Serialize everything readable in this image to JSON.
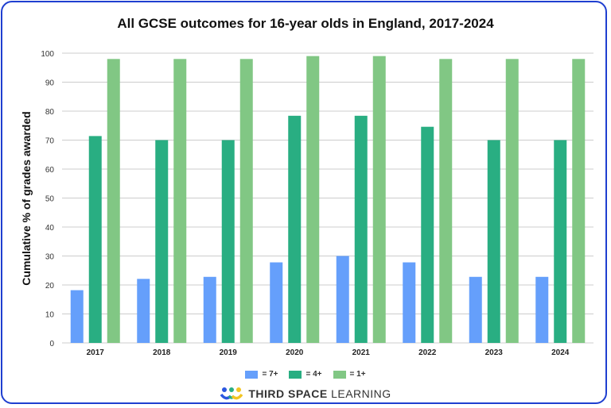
{
  "chart_data": {
    "type": "bar",
    "title": "All GCSE outcomes for 16-year olds in England, 2017-2024",
    "xlabel": "",
    "ylabel": "Cumulative % of grades awarded",
    "ylim": [
      0,
      100
    ],
    "yticks": [
      0,
      10,
      20,
      30,
      40,
      50,
      60,
      70,
      80,
      90,
      100
    ],
    "grid": true,
    "legend": "bottom",
    "categories": [
      "2017",
      "2018",
      "2019",
      "2020",
      "2021",
      "2022",
      "2023",
      "2024"
    ],
    "series": [
      {
        "name": "= 7+",
        "color": "#659ffb",
        "values": [
          18.2,
          22.1,
          22.8,
          27.8,
          30.0,
          27.8,
          22.8,
          22.8
        ]
      },
      {
        "name": "= 4+",
        "color": "#29ae82",
        "values": [
          71.4,
          70.0,
          70.0,
          78.4,
          78.4,
          74.6,
          70.0,
          70.0
        ]
      },
      {
        "name": "= 1+",
        "color": "#81c784",
        "values": [
          98.0,
          98.0,
          98.0,
          99.0,
          99.0,
          98.0,
          98.0,
          98.0
        ]
      }
    ]
  },
  "brand": {
    "bold": "THIRD SPACE",
    "light": "LEARNING"
  },
  "colors": {
    "border": "#1f3fd0"
  }
}
